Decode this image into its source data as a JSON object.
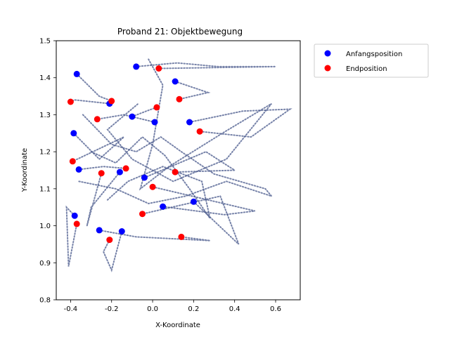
{
  "chart_data": {
    "type": "scatter",
    "title": "Proband 21: Objektbewegung",
    "xlabel": "X-Koordinate",
    "ylabel": "Y-Koordinate",
    "xlim": [
      -0.47,
      0.72
    ],
    "ylim": [
      0.8,
      1.5
    ],
    "xticks": [
      "-0.4",
      "-0.2",
      "0.0",
      "0.2",
      "0.4",
      "0.6"
    ],
    "xtick_values": [
      -0.4,
      -0.2,
      0.0,
      0.2,
      0.4,
      0.6
    ],
    "yticks": [
      "0.8",
      "0.9",
      "1.0",
      "1.1",
      "1.2",
      "1.3",
      "1.4",
      "1.5"
    ],
    "ytick_values": [
      0.8,
      0.9,
      1.0,
      1.1,
      1.2,
      1.3,
      1.4,
      1.5
    ],
    "grid": false,
    "legend_position": "outside-top-right",
    "colors": {
      "start": "#0000ff",
      "end": "#ff0000",
      "path": "#4a5a8c"
    },
    "series": [
      {
        "name": "Anfangsposition",
        "points": [
          [
            -0.37,
            1.41
          ],
          [
            -0.08,
            1.43
          ],
          [
            0.11,
            1.39
          ],
          [
            -0.21,
            1.33
          ],
          [
            -0.1,
            1.295
          ],
          [
            0.01,
            1.28
          ],
          [
            0.18,
            1.28
          ],
          [
            -0.385,
            1.25
          ],
          [
            -0.36,
            1.152
          ],
          [
            -0.16,
            1.145
          ],
          [
            -0.04,
            1.13
          ],
          [
            0.05,
            1.052
          ],
          [
            0.2,
            1.065
          ],
          [
            -0.38,
            1.027
          ],
          [
            -0.26,
            0.988
          ],
          [
            -0.15,
            0.985
          ]
        ]
      },
      {
        "name": "Endposition",
        "points": [
          [
            0.03,
            1.425
          ],
          [
            -0.2,
            1.337
          ],
          [
            0.13,
            1.342
          ],
          [
            -0.4,
            1.335
          ],
          [
            0.02,
            1.32
          ],
          [
            -0.27,
            1.288
          ],
          [
            0.23,
            1.255
          ],
          [
            -0.39,
            1.174
          ],
          [
            -0.13,
            1.155
          ],
          [
            -0.25,
            1.142
          ],
          [
            0.11,
            1.145
          ],
          [
            0.0,
            1.105
          ],
          [
            -0.05,
            1.032
          ],
          [
            -0.37,
            1.005
          ],
          [
            0.14,
            0.97
          ],
          [
            -0.21,
            0.962
          ]
        ]
      }
    ],
    "paths": [
      [
        [
          -0.37,
          1.41
        ],
        [
          -0.26,
          1.35
        ],
        [
          -0.2,
          1.337
        ]
      ],
      [
        [
          -0.08,
          1.43
        ],
        [
          0.12,
          1.44
        ],
        [
          0.32,
          1.43
        ],
        [
          0.6,
          1.43
        ],
        [
          0.03,
          1.425
        ]
      ],
      [
        [
          0.11,
          1.39
        ],
        [
          0.27,
          1.36
        ],
        [
          0.13,
          1.342
        ]
      ],
      [
        [
          -0.21,
          1.33
        ],
        [
          -0.38,
          1.34
        ],
        [
          -0.4,
          1.335
        ]
      ],
      [
        [
          -0.1,
          1.295
        ],
        [
          -0.03,
          1.31
        ],
        [
          0.02,
          1.32
        ]
      ],
      [
        [
          0.01,
          1.28
        ],
        [
          -0.14,
          1.3
        ],
        [
          -0.27,
          1.288
        ]
      ],
      [
        [
          0.18,
          1.28
        ],
        [
          0.44,
          1.31
        ],
        [
          0.67,
          1.315
        ],
        [
          0.48,
          1.24
        ],
        [
          0.23,
          1.255
        ]
      ],
      [
        [
          -0.385,
          1.25
        ],
        [
          -0.26,
          1.18
        ],
        [
          -0.14,
          1.24
        ],
        [
          -0.39,
          1.174
        ]
      ],
      [
        [
          -0.36,
          1.152
        ],
        [
          -0.24,
          1.16
        ],
        [
          -0.13,
          1.155
        ]
      ],
      [
        [
          -0.16,
          1.145
        ],
        [
          -0.3,
          1.05
        ],
        [
          -0.32,
          1.0
        ],
        [
          -0.25,
          1.142
        ]
      ],
      [
        [
          -0.04,
          1.13
        ],
        [
          0.26,
          1.2
        ],
        [
          0.4,
          1.15
        ],
        [
          0.11,
          1.145
        ]
      ],
      [
        [
          0.05,
          1.052
        ],
        [
          0.35,
          1.03
        ],
        [
          0.5,
          1.04
        ],
        [
          0.0,
          1.105
        ]
      ],
      [
        [
          0.2,
          1.065
        ],
        [
          0.42,
          0.95
        ],
        [
          0.33,
          1.08
        ],
        [
          -0.05,
          1.032
        ]
      ],
      [
        [
          -0.38,
          1.027
        ],
        [
          -0.42,
          1.05
        ],
        [
          -0.41,
          0.89
        ],
        [
          -0.37,
          1.005
        ]
      ],
      [
        [
          -0.26,
          0.988
        ],
        [
          -0.08,
          0.97
        ],
        [
          0.28,
          0.96
        ],
        [
          0.14,
          0.97
        ]
      ],
      [
        [
          -0.15,
          0.985
        ],
        [
          -0.2,
          0.88
        ],
        [
          -0.24,
          0.93
        ],
        [
          -0.21,
          0.962
        ]
      ],
      [
        [
          -0.02,
          1.45
        ],
        [
          0.05,
          1.38
        ],
        [
          0.0,
          1.22
        ],
        [
          -0.06,
          1.1
        ],
        [
          0.08,
          1.16
        ],
        [
          0.34,
          1.25
        ],
        [
          0.58,
          1.33
        ],
        [
          0.36,
          1.18
        ],
        [
          0.1,
          1.12
        ],
        [
          -0.1,
          1.18
        ],
        [
          -0.22,
          1.26
        ],
        [
          -0.07,
          1.33
        ]
      ],
      [
        [
          -0.34,
          1.3
        ],
        [
          -0.2,
          1.22
        ],
        [
          -0.08,
          1.2
        ],
        [
          0.04,
          1.24
        ],
        [
          0.14,
          1.2
        ],
        [
          0.3,
          1.14
        ],
        [
          0.55,
          1.1
        ],
        [
          0.58,
          1.08
        ],
        [
          0.36,
          1.12
        ],
        [
          0.16,
          1.08
        ],
        [
          -0.02,
          1.06
        ],
        [
          -0.18,
          1.1
        ],
        [
          -0.36,
          1.12
        ]
      ],
      [
        [
          -0.3,
          1.2
        ],
        [
          -0.18,
          1.17
        ],
        [
          -0.05,
          1.24
        ],
        [
          0.06,
          1.19
        ],
        [
          0.18,
          1.1
        ],
        [
          0.28,
          1.02
        ],
        [
          0.24,
          1.12
        ],
        [
          0.05,
          1.16
        ],
        [
          -0.12,
          1.12
        ],
        [
          -0.22,
          1.07
        ]
      ]
    ]
  }
}
